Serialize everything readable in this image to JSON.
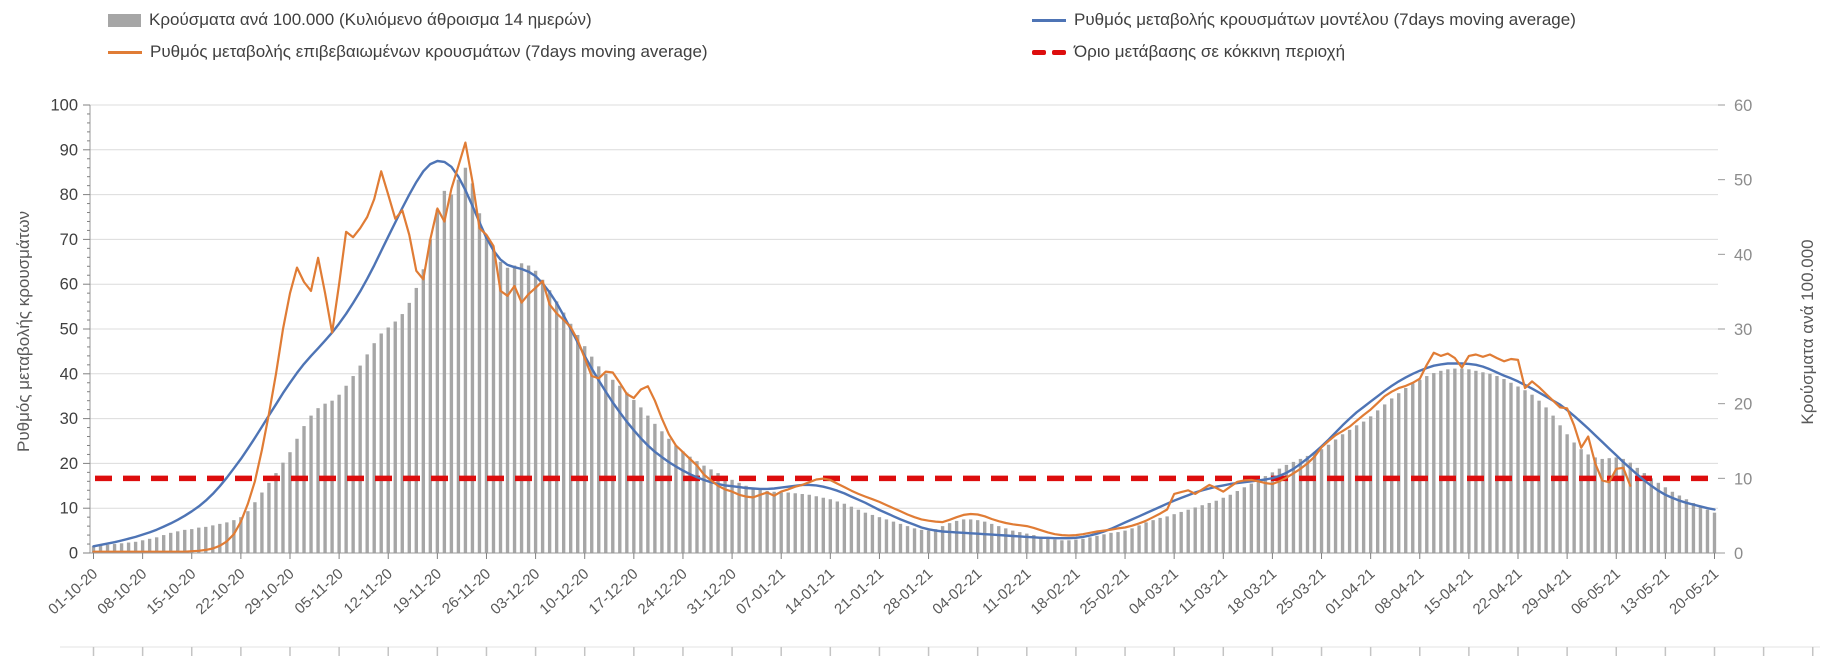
{
  "legend": {
    "cases_bars": {
      "label": "Κρούσματα ανά 100.000 (Κυλιόμενο άθροισμα 14 ημερών)",
      "color": "#a6a6a6",
      "swatch": "bar-swatch"
    },
    "confirmed_line": {
      "label": "Ρυθμός μεταβολής επιβεβαιωμένων κρουσμάτων (7days moving average)",
      "color": "#e07c35",
      "swatch": "line-swatch"
    },
    "model_line": {
      "label": "Ρυθμός μεταβολής κρουσμάτων μοντέλου (7days moving average)",
      "color": "#4e74b5",
      "swatch": "line-swatch"
    },
    "threshold": {
      "label": "Όριο μετάβασης σε κόκκινη περιοχή",
      "color": "#dd0d0d",
      "swatch": "dash-swatch"
    }
  },
  "chart_data": {
    "type": "bar",
    "subtype": "daily bars with two overlay lines and one horizontal threshold line",
    "days": 232,
    "date_start": "01-10-20",
    "date_end": "20-05-21",
    "x_tick_labels": [
      "01-10-20",
      "08-10-20",
      "15-10-20",
      "22-10-20",
      "29-10-20",
      "05-11-20",
      "12-11-20",
      "19-11-20",
      "26-11-20",
      "03-12-20",
      "10-12-20",
      "17-12-20",
      "24-12-20",
      "31-12-20",
      "07-01-21",
      "14-01-21",
      "21-01-21",
      "28-01-21",
      "04-02-21",
      "11-02-21",
      "18-02-21",
      "25-02-21",
      "04-03-21",
      "11-03-21",
      "18-03-21",
      "25-03-21",
      "01-04-21",
      "08-04-21",
      "15-04-21",
      "22-04-21",
      "29-04-21",
      "06-05-21",
      "13-05-21",
      "20-05-21"
    ],
    "x_tick_every_days": 7,
    "left_axis": {
      "label": "Ρυθμός μεταβολής κρουσμάτων",
      "min": 0,
      "max": 100,
      "step": 10,
      "tick_labels": [
        "0",
        "10",
        "20",
        "30",
        "40",
        "50",
        "60",
        "70",
        "80",
        "90",
        "100"
      ]
    },
    "right_axis": {
      "label": "Κρούσματα ανά 100.000",
      "min": 0,
      "max": 60,
      "step": 10,
      "tick_labels": [
        "0",
        "10",
        "20",
        "30",
        "40",
        "50",
        "60"
      ]
    },
    "grid": "horizontal, left-axis steps of 10",
    "legend_position": "top, two rows two columns",
    "series": [
      {
        "name": "Κρούσματα ανά 100.000 (Κυλιόμενο άθροισμα 14 ημερών)",
        "type": "bar",
        "axis": "right",
        "color": "#a6a6a6",
        "values": [
          0.9,
          1.0,
          1.1,
          1.2,
          1.3,
          1.4,
          1.5,
          1.7,
          1.9,
          2.1,
          2.4,
          2.7,
          2.9,
          3.1,
          3.2,
          3.4,
          3.5,
          3.7,
          3.9,
          4.1,
          4.4,
          4.8,
          5.6,
          6.8,
          8.1,
          9.4,
          10.7,
          12.1,
          13.5,
          15.3,
          17.0,
          18.4,
          19.4,
          20.0,
          20.4,
          21.2,
          22.4,
          23.7,
          25.1,
          26.6,
          28.1,
          29.4,
          30.2,
          31.0,
          32.0,
          33.5,
          35.5,
          38.0,
          42.0,
          46.0,
          48.5,
          48.0,
          50.0,
          51.6,
          49.5,
          45.5,
          42.5,
          40.5,
          39.0,
          38.2,
          38.5,
          38.8,
          38.5,
          37.8,
          36.6,
          35.2,
          33.7,
          32.2,
          30.7,
          29.2,
          27.7,
          26.3,
          25.0,
          24.0,
          23.2,
          22.4,
          21.5,
          20.5,
          19.5,
          18.4,
          17.3,
          16.3,
          15.3,
          14.4,
          13.6,
          12.9,
          12.3,
          11.7,
          11.2,
          10.7,
          10.2,
          9.8,
          9.4,
          9.0,
          8.7,
          8.5,
          8.3,
          8.2,
          8.1,
          8.1,
          8.0,
          7.9,
          7.8,
          7.6,
          7.4,
          7.2,
          6.9,
          6.6,
          6.2,
          5.8,
          5.4,
          5.1,
          4.8,
          4.5,
          4.2,
          3.9,
          3.6,
          3.3,
          3.1,
          3.0,
          3.2,
          3.6,
          4.0,
          4.3,
          4.5,
          4.5,
          4.4,
          4.2,
          3.9,
          3.6,
          3.3,
          3.0,
          2.8,
          2.6,
          2.4,
          2.2,
          2.0,
          1.8,
          1.7,
          1.7,
          1.8,
          1.9,
          2.1,
          2.3,
          2.5,
          2.7,
          2.8,
          3.0,
          3.3,
          3.7,
          4.1,
          4.4,
          4.7,
          4.9,
          5.2,
          5.5,
          5.8,
          6.1,
          6.4,
          6.7,
          7.0,
          7.4,
          7.8,
          8.3,
          8.8,
          9.3,
          9.8,
          10.3,
          10.8,
          11.3,
          11.8,
          12.2,
          12.6,
          13.0,
          13.4,
          13.9,
          14.5,
          15.2,
          15.9,
          16.5,
          17.1,
          17.6,
          18.3,
          19.1,
          19.9,
          20.7,
          21.4,
          22.1,
          22.7,
          23.2,
          23.7,
          24.1,
          24.4,
          24.6,
          24.7,
          24.7,
          24.6,
          24.4,
          24.2,
          24.0,
          23.7,
          23.3,
          22.8,
          22.3,
          21.8,
          21.2,
          20.4,
          19.5,
          18.4,
          17.1,
          15.9,
          14.8,
          13.9,
          13.2,
          12.8,
          12.6,
          12.7,
          12.8,
          12.6,
          12.1,
          11.4,
          10.7,
          10.0,
          9.4,
          8.8,
          8.2,
          7.7,
          7.2,
          6.7,
          6.2,
          5.8,
          5.4
        ]
      },
      {
        "name": "Ρυθμός μεταβολής επιβεβαιωμένων κρουσμάτων (7days moving average)",
        "type": "line",
        "axis": "left",
        "color": "#e07c35",
        "values": [
          0.3,
          0.3,
          0.3,
          0.3,
          0.3,
          0.3,
          0.3,
          0.3,
          0.3,
          0.3,
          0.3,
          0.3,
          0.3,
          0.3,
          0.4,
          0.5,
          0.7,
          1.0,
          1.6,
          2.6,
          4.2,
          7.0,
          11.0,
          16.0,
          23.0,
          31.0,
          40.0,
          50.0,
          58.0,
          63.7,
          60.5,
          58.5,
          65.9,
          58.0,
          49.2,
          60.0,
          71.7,
          70.5,
          72.5,
          75.0,
          79.0,
          85.2,
          80.0,
          74.6,
          76.5,
          71.0,
          63.0,
          61.1,
          70.0,
          76.9,
          74.0,
          81.3,
          86.4,
          91.6,
          83.0,
          72.5,
          71.0,
          68.5,
          58.5,
          57.4,
          59.6,
          55.9,
          57.8,
          59.2,
          60.7,
          55.5,
          53.5,
          52.0,
          50.4,
          47.5,
          43.5,
          39.5,
          39.0,
          40.5,
          40.3,
          38.0,
          35.5,
          34.6,
          36.5,
          37.2,
          34.0,
          30.0,
          26.5,
          24.0,
          22.5,
          21.0,
          19.5,
          17.5,
          16.2,
          15.0,
          14.2,
          13.7,
          13.0,
          12.6,
          12.4,
          13.0,
          13.5,
          12.8,
          13.7,
          14.2,
          14.8,
          15.2,
          15.8,
          16.4,
          16.6,
          16.3,
          15.5,
          14.7,
          13.9,
          13.2,
          12.6,
          12.0,
          11.4,
          10.7,
          10.0,
          9.3,
          8.6,
          8.0,
          7.5,
          7.2,
          7.0,
          6.9,
          7.4,
          8.0,
          8.5,
          8.7,
          8.6,
          8.2,
          7.6,
          7.1,
          6.7,
          6.4,
          6.2,
          6.0,
          5.6,
          5.1,
          4.6,
          4.2,
          4.0,
          3.9,
          4.0,
          4.2,
          4.5,
          4.8,
          5.0,
          5.2,
          5.5,
          5.7,
          6.1,
          6.6,
          7.2,
          8.0,
          8.8,
          9.7,
          13.2,
          13.6,
          14.0,
          13.2,
          14.2,
          15.2,
          14.5,
          13.7,
          14.8,
          15.9,
          16.2,
          16.3,
          16.0,
          15.6,
          15.4,
          16.0,
          16.8,
          17.8,
          18.8,
          20.0,
          21.5,
          23.6,
          25.0,
          26.3,
          27.2,
          28.2,
          29.5,
          30.8,
          32.0,
          33.5,
          35.0,
          36.0,
          36.8,
          37.3,
          38.0,
          38.9,
          42.0,
          44.7,
          44.0,
          44.5,
          43.5,
          41.4,
          44.0,
          44.3,
          43.8,
          44.3,
          43.5,
          42.8,
          43.3,
          43.1,
          36.8,
          38.3,
          37.0,
          35.5,
          34.0,
          32.5,
          32.3,
          28.5,
          23.5,
          26.0,
          20.0,
          16.2,
          15.8,
          18.8,
          19.0,
          15.0,
          null,
          null,
          null,
          null,
          null,
          null,
          null,
          null,
          null,
          null,
          null,
          null
        ]
      },
      {
        "name": "Ρυθμός μεταβολής κρουσμάτων μοντέλου (7days moving average)",
        "type": "line",
        "axis": "left",
        "color": "#4e74b5",
        "values": [
          1.5,
          1.8,
          2.1,
          2.4,
          2.8,
          3.2,
          3.6,
          4.1,
          4.6,
          5.2,
          5.9,
          6.6,
          7.4,
          8.3,
          9.3,
          10.4,
          11.7,
          13.2,
          14.9,
          16.8,
          18.9,
          21.0,
          23.3,
          25.7,
          28.2,
          30.7,
          33.2,
          35.7,
          38.0,
          40.2,
          42.2,
          44.0,
          45.7,
          47.4,
          49.2,
          51.2,
          53.4,
          55.8,
          58.4,
          61.2,
          64.2,
          67.4,
          70.6,
          73.8,
          77.0,
          80.0,
          82.8,
          85.2,
          86.8,
          87.5,
          87.3,
          86.2,
          84.0,
          81.0,
          77.5,
          73.8,
          70.3,
          67.5,
          65.5,
          64.3,
          63.8,
          63.4,
          62.8,
          61.8,
          60.2,
          58.2,
          55.8,
          53.0,
          50.0,
          47.0,
          44.0,
          41.2,
          38.5,
          36.0,
          33.6,
          31.4,
          29.3,
          27.4,
          25.6,
          24.0,
          22.6,
          21.4,
          20.3,
          19.3,
          18.4,
          17.6,
          16.9,
          16.3,
          15.8,
          15.4,
          15.1,
          14.9,
          14.7,
          14.5,
          14.4,
          14.3,
          14.3,
          14.4,
          14.6,
          14.8,
          15.0,
          15.2,
          15.2,
          15.1,
          14.8,
          14.4,
          13.9,
          13.3,
          12.6,
          11.9,
          11.2,
          10.4,
          9.6,
          8.9,
          8.2,
          7.5,
          6.9,
          6.3,
          5.7,
          5.3,
          5.0,
          4.8,
          4.7,
          4.6,
          4.5,
          4.4,
          4.3,
          4.2,
          4.1,
          4.0,
          3.9,
          3.8,
          3.7,
          3.6,
          3.5,
          3.4,
          3.4,
          3.3,
          3.3,
          3.3,
          3.4,
          3.6,
          3.9,
          4.3,
          4.8,
          5.4,
          6.1,
          6.8,
          7.5,
          8.2,
          8.9,
          9.6,
          10.3,
          11.0,
          11.7,
          12.3,
          12.9,
          13.5,
          14.0,
          14.4,
          14.8,
          15.1,
          15.4,
          15.6,
          15.8,
          16.0,
          16.2,
          16.4,
          16.7,
          17.2,
          17.9,
          18.8,
          19.9,
          21.1,
          22.4,
          23.8,
          25.3,
          26.9,
          28.5,
          30.0,
          31.4,
          32.6,
          33.8,
          35.0,
          36.2,
          37.3,
          38.3,
          39.2,
          40.0,
          40.7,
          41.3,
          41.8,
          42.1,
          42.3,
          42.3,
          42.3,
          42.2,
          42.0,
          41.6,
          41.0,
          40.3,
          39.6,
          39.0,
          38.3,
          37.5,
          36.7,
          35.8,
          34.9,
          34.0,
          33.1,
          31.9,
          30.6,
          29.2,
          27.8,
          26.3,
          24.8,
          23.3,
          21.8,
          20.3,
          18.9,
          17.5,
          16.2,
          15.0,
          13.9,
          13.0,
          12.3,
          11.7,
          11.2,
          10.8,
          10.4,
          10.0,
          9.7
        ]
      },
      {
        "name": "Όριο μετάβασης σε κόκκινη περιοχή",
        "type": "threshold",
        "axis": "right",
        "color": "#dd0d0d",
        "value": 10
      }
    ]
  }
}
